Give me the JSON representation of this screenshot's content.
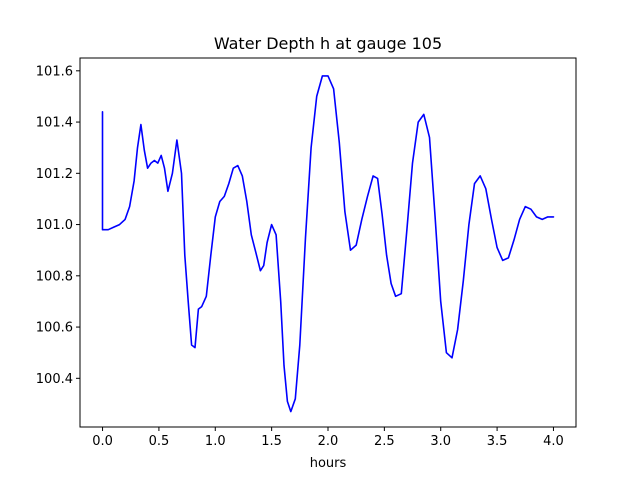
{
  "chart_data": {
    "type": "line",
    "title": "Water Depth h at gauge 105",
    "xlabel": "hours",
    "ylabel": "",
    "xlim": [
      -0.2,
      4.2
    ],
    "ylim": [
      100.21,
      101.65
    ],
    "grid": false,
    "x_ticks": [
      0.0,
      0.5,
      1.0,
      1.5,
      2.0,
      2.5,
      3.0,
      3.5,
      4.0
    ],
    "x_tick_labels": [
      "0.0",
      "0.5",
      "1.0",
      "1.5",
      "2.0",
      "2.5",
      "3.0",
      "3.5",
      "4.0"
    ],
    "y_ticks": [
      100.4,
      100.6,
      100.8,
      101.0,
      101.2,
      101.4,
      101.6
    ],
    "y_tick_labels": [
      "100.4",
      "100.6",
      "100.8",
      "101.0",
      "101.2",
      "101.4",
      "101.6"
    ],
    "series": [
      {
        "color": "#0000ff",
        "x": [
          0.0,
          0.0,
          0.05,
          0.1,
          0.15,
          0.2,
          0.24,
          0.28,
          0.31,
          0.34,
          0.37,
          0.4,
          0.43,
          0.46,
          0.49,
          0.52,
          0.55,
          0.58,
          0.62,
          0.66,
          0.7,
          0.73,
          0.76,
          0.79,
          0.82,
          0.85,
          0.88,
          0.92,
          0.96,
          1.0,
          1.04,
          1.08,
          1.12,
          1.16,
          1.2,
          1.24,
          1.28,
          1.32,
          1.36,
          1.4,
          1.43,
          1.46,
          1.5,
          1.54,
          1.58,
          1.61,
          1.64,
          1.67,
          1.71,
          1.75,
          1.8,
          1.85,
          1.9,
          1.95,
          2.0,
          2.05,
          2.1,
          2.15,
          2.2,
          2.25,
          2.3,
          2.35,
          2.4,
          2.44,
          2.48,
          2.52,
          2.56,
          2.6,
          2.65,
          2.7,
          2.75,
          2.8,
          2.85,
          2.9,
          2.95,
          3.0,
          3.05,
          3.1,
          3.15,
          3.2,
          3.25,
          3.3,
          3.35,
          3.4,
          3.45,
          3.5,
          3.55,
          3.6,
          3.65,
          3.7,
          3.75,
          3.8,
          3.85,
          3.9,
          3.95,
          4.0
        ],
        "y": [
          101.44,
          100.98,
          100.98,
          100.99,
          101.0,
          101.02,
          101.07,
          101.17,
          101.3,
          101.39,
          101.29,
          101.22,
          101.24,
          101.25,
          101.24,
          101.27,
          101.22,
          101.13,
          101.2,
          101.33,
          101.2,
          100.88,
          100.7,
          100.53,
          100.52,
          100.67,
          100.68,
          100.72,
          100.88,
          101.03,
          101.09,
          101.11,
          101.16,
          101.22,
          101.23,
          101.19,
          101.09,
          100.96,
          100.89,
          100.82,
          100.84,
          100.93,
          101.0,
          100.96,
          100.7,
          100.45,
          100.31,
          100.27,
          100.32,
          100.53,
          100.95,
          101.3,
          101.5,
          101.58,
          101.58,
          101.53,
          101.32,
          101.05,
          100.9,
          100.92,
          101.02,
          101.11,
          101.19,
          101.18,
          101.04,
          100.88,
          100.77,
          100.72,
          100.73,
          100.98,
          101.24,
          101.4,
          101.43,
          101.34,
          101.03,
          100.7,
          100.5,
          100.48,
          100.59,
          100.78,
          101.0,
          101.16,
          101.19,
          101.14,
          101.02,
          100.91,
          100.86,
          100.87,
          100.94,
          101.02,
          101.07,
          101.06,
          101.03,
          101.02,
          101.03,
          101.03
        ]
      }
    ]
  }
}
